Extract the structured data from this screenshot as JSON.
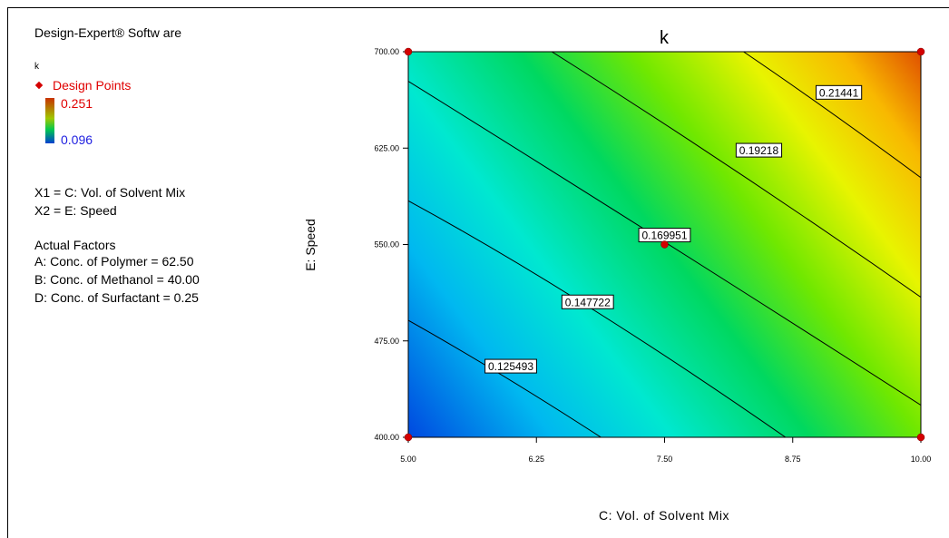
{
  "software": "Design-Expert® Softw are",
  "legend": {
    "response": "k",
    "design_points_label": "Design Points",
    "high": "0.251",
    "low": "0.096",
    "design_point_color": "#d40000"
  },
  "factors": {
    "x1": "X1 = C: Vol. of Solvent Mix",
    "x2": "X2 = E: Speed",
    "actual_header": "Actual Factors",
    "a": "A: Conc. of Polymer = 62.50",
    "b": "B: Conc. of Methanol = 40.00",
    "d": "D: Conc. of Surfactant = 0.25"
  },
  "chart_data": {
    "type": "contour",
    "title": "k",
    "xlabel": "C: Vol. of Solvent Mix",
    "ylabel": "E: Speed",
    "xlim": [
      5.0,
      10.0
    ],
    "ylim": [
      400.0,
      700.0
    ],
    "x_ticks": [
      "5.00",
      "6.25",
      "7.50",
      "8.75",
      "10.00"
    ],
    "y_ticks": [
      "400.00",
      "475.00",
      "550.00",
      "625.00",
      "700.00"
    ],
    "contour_levels": [
      {
        "label": "0.125493",
        "value": 0.125493,
        "x_at_400": 6.88,
        "x_at_700": null,
        "y_at_5": 491,
        "label_x": 6.0,
        "label_y": 455
      },
      {
        "label": "0.147722",
        "value": 0.147722,
        "x_at_400": 8.68,
        "y_at_5": 584,
        "label_x": 6.75,
        "label_y": 505
      },
      {
        "label": "0.169951",
        "value": 0.169951,
        "x_at_400": 10.0,
        "y_at_5": 677,
        "label_x": 7.5,
        "label_y": 557
      },
      {
        "label": "0.19218",
        "value": 0.19218,
        "x_at_700": 6.4,
        "y_at_10": 509,
        "label_x": 8.42,
        "label_y": 623
      },
      {
        "label": "0.21441",
        "value": 0.21441,
        "x_at_700": 8.27,
        "y_at_10": 602,
        "label_x": 9.2,
        "label_y": 668
      }
    ],
    "design_points": [
      {
        "x": 5.0,
        "y": 700.0
      },
      {
        "x": 10.0,
        "y": 700.0
      },
      {
        "x": 7.5,
        "y": 550.0
      },
      {
        "x": 5.0,
        "y": 400.0
      },
      {
        "x": 10.0,
        "y": 400.0
      }
    ],
    "color_scale": [
      "#0040e0",
      "#00c8e8",
      "#00d870",
      "#b8f000",
      "#f8f000",
      "#e07000",
      "#d84000"
    ]
  }
}
